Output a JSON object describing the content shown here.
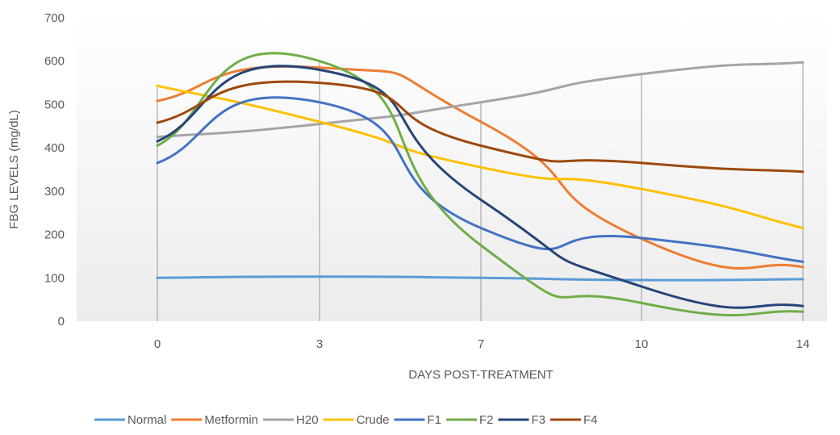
{
  "chart_data": {
    "type": "line",
    "title": "",
    "xlabel": "DAYS POST-TREATMENT",
    "ylabel": "FBG LEVELS (mg/dL)",
    "categories": [
      "0",
      "3",
      "7",
      "10",
      "14"
    ],
    "ylim": [
      0,
      700
    ],
    "yticks": [
      0,
      100,
      200,
      300,
      400,
      500,
      600,
      700
    ],
    "grid": "vertical drop lines at categories",
    "legend_position": "bottom",
    "smooth": true,
    "series": [
      {
        "name": "Normal",
        "color": "#5B9BD5",
        "values": [
          100,
          103,
          100,
          95,
          97
        ]
      },
      {
        "name": "Metformin",
        "color": "#ED7D31",
        "values": [
          508,
          585,
          460,
          190,
          125
        ]
      },
      {
        "name": "H20",
        "color": "#A5A5A5",
        "values": [
          425,
          455,
          505,
          570,
          597
        ]
      },
      {
        "name": "Crude",
        "color": "#FFC000",
        "values": [
          543,
          460,
          355,
          305,
          215
        ]
      },
      {
        "name": "F1",
        "color": "#4472C4",
        "values": [
          365,
          505,
          215,
          192,
          137
        ]
      },
      {
        "name": "F2",
        "color": "#70AD47",
        "values": [
          405,
          600,
          175,
          42,
          22
        ]
      },
      {
        "name": "F3",
        "color": "#264478",
        "values": [
          415,
          580,
          280,
          80,
          35
        ]
      },
      {
        "name": "F4",
        "color": "#9E480E",
        "values": [
          458,
          550,
          405,
          365,
          345
        ]
      }
    ]
  }
}
